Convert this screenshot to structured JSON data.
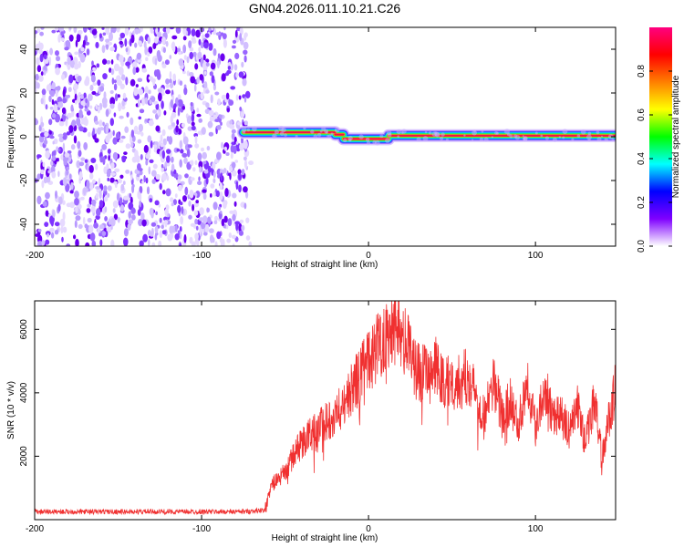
{
  "chart_data": [
    {
      "type": "heatmap",
      "title": "GN04.2026.011.10.21.C26",
      "xlabel": "Height of straight line (km)",
      "ylabel": "Frequency (Hz)",
      "xlim": [
        -200,
        148
      ],
      "ylim": [
        -50,
        50
      ],
      "xticks": [
        -200,
        -100,
        0,
        100
      ],
      "yticks": [
        -40,
        -20,
        0,
        20,
        40
      ],
      "noise_region_x": [
        -200,
        -72
      ],
      "line_segments": [
        {
          "x": [
            -75,
            -20
          ],
          "y": 2
        },
        {
          "x": [
            -20,
            -15
          ],
          "y": 1
        },
        {
          "x": [
            -15,
            12
          ],
          "y": -1
        },
        {
          "x": [
            12,
            148
          ],
          "y": 0.5
        }
      ],
      "colorbar": {
        "label": "Normalized spectral amplitude",
        "range": [
          0.0,
          1.0
        ],
        "ticks": [
          "0.0",
          "0.2",
          "0.4",
          "0.6",
          "0.8"
        ],
        "colors": [
          "#ffffff",
          "#7f00ff",
          "#0000ff",
          "#00ffff",
          "#00ff00",
          "#ffff00",
          "#ff7f00",
          "#ff0000",
          "#ff0080"
        ]
      }
    },
    {
      "type": "line",
      "xlabel": "Height of straight line (km)",
      "ylabel": "SNR (10 * v/v)",
      "xlim": [
        -200,
        148
      ],
      "ylim": [
        0,
        6900
      ],
      "xticks": [
        -200,
        -100,
        0,
        100
      ],
      "yticks": [
        2000,
        4000,
        6000
      ],
      "series": [
        {
          "name": "SNR",
          "color": "#f03030",
          "x": [
            -200,
            -150,
            -100,
            -75,
            -62,
            -58,
            -50,
            -42,
            -35,
            -25,
            -15,
            -8,
            0,
            8,
            14,
            18,
            22,
            28,
            35,
            40,
            45,
            50,
            55,
            60,
            65,
            70,
            75,
            80,
            85,
            90,
            95,
            100,
            105,
            110,
            115,
            120,
            125,
            130,
            135,
            140,
            145,
            148
          ],
          "y": [
            250,
            250,
            250,
            250,
            300,
            1100,
            1500,
            2300,
            2700,
            3100,
            3600,
            4300,
            5000,
            5700,
            6100,
            6200,
            5600,
            4800,
            4500,
            4800,
            4300,
            4400,
            4300,
            4600,
            3800,
            3300,
            4400,
            3300,
            3700,
            3000,
            4500,
            2900,
            4200,
            3400,
            3300,
            2800,
            3600,
            2400,
            3800,
            2000,
            3400,
            4200
          ]
        }
      ]
    }
  ]
}
